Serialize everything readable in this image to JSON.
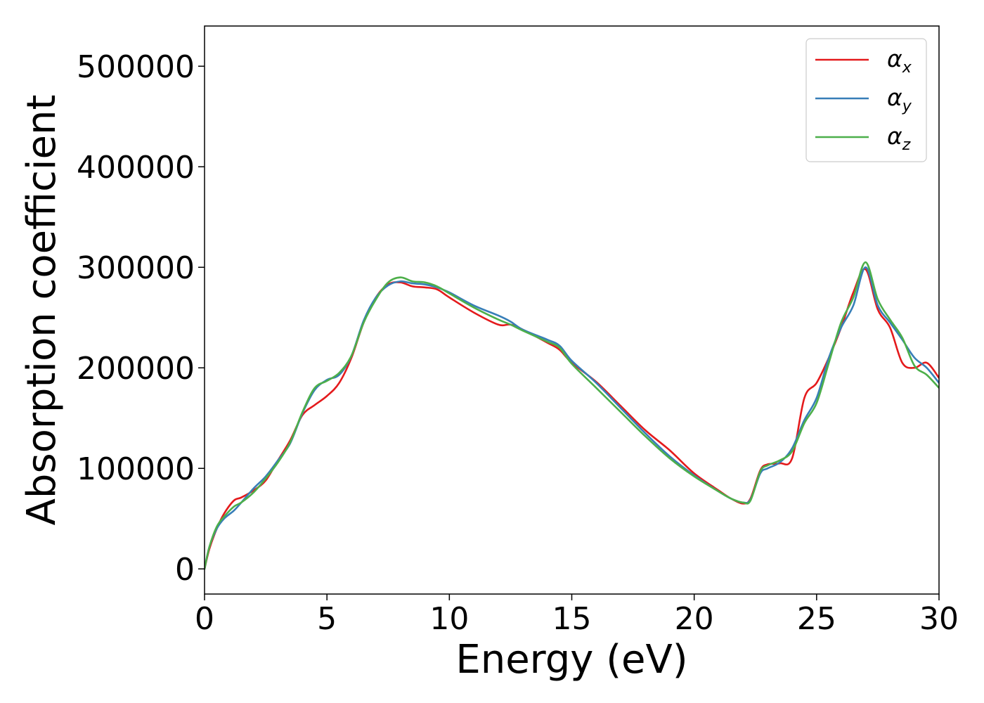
{
  "chart_data": {
    "type": "line",
    "title": "",
    "xlabel": "Energy (eV)",
    "ylabel": "Absorption coefficient",
    "xlim": [
      0,
      30
    ],
    "ylim": [
      -25000,
      540000
    ],
    "xticks": [
      0,
      5,
      10,
      15,
      20,
      25,
      30
    ],
    "yticks": [
      0,
      100000,
      200000,
      300000,
      400000,
      500000
    ],
    "grid": false,
    "legend_position": "top-right",
    "series": [
      {
        "name": "α",
        "subscript": "x",
        "color": "#e41a1c",
        "x": [
          0,
          0.2,
          0.5,
          0.8,
          1.2,
          1.5,
          2,
          2.5,
          3,
          3.5,
          4,
          4.5,
          5,
          5.5,
          6,
          6.5,
          7,
          7.5,
          8,
          8.5,
          9,
          9.5,
          10,
          11,
          12,
          12.5,
          13,
          14,
          14.5,
          15,
          16,
          17,
          18,
          19,
          20,
          21,
          21.5,
          22,
          22.3,
          22.7,
          23,
          23.5,
          24,
          24.5,
          25,
          25.5,
          26,
          26.5,
          27,
          27.5,
          28,
          28.5,
          29,
          29.5,
          30
        ],
        "y": [
          0,
          20000,
          40000,
          55000,
          68000,
          71000,
          78000,
          88000,
          108000,
          128000,
          153000,
          163000,
          172000,
          185000,
          210000,
          245000,
          270000,
          283000,
          285000,
          281000,
          280000,
          278000,
          270000,
          255000,
          243000,
          243000,
          238000,
          225000,
          218000,
          205000,
          186000,
          162000,
          138000,
          118000,
          95000,
          78000,
          70000,
          65000,
          70000,
          98000,
          104000,
          105000,
          110000,
          170000,
          185000,
          210000,
          240000,
          275000,
          298000,
          258000,
          240000,
          205000,
          200000,
          205000,
          190000
        ]
      },
      {
        "name": "α",
        "subscript": "y",
        "color": "#377eb8",
        "x": [
          0,
          0.2,
          0.5,
          0.8,
          1.2,
          1.5,
          2,
          2.5,
          3,
          3.5,
          4,
          4.5,
          5,
          5.5,
          6,
          6.5,
          7,
          7.5,
          8,
          8.5,
          9,
          9.5,
          10,
          11,
          12,
          12.5,
          13,
          14,
          14.5,
          15,
          16,
          17,
          18,
          19,
          20,
          21,
          21.5,
          22,
          22.3,
          22.7,
          23,
          23.5,
          24,
          24.5,
          25,
          25.5,
          26,
          26.5,
          27,
          27.5,
          28,
          28.5,
          29,
          29.5,
          30
        ],
        "y": [
          0,
          22000,
          40000,
          50000,
          58000,
          66000,
          80000,
          92000,
          108000,
          125000,
          155000,
          178000,
          188000,
          193000,
          212000,
          247000,
          270000,
          282000,
          286000,
          284000,
          283000,
          280000,
          275000,
          262000,
          252000,
          246000,
          238000,
          228000,
          222000,
          207000,
          185000,
          160000,
          135000,
          112000,
          93000,
          77000,
          70000,
          66000,
          69000,
          95000,
          100000,
          106000,
          120000,
          148000,
          170000,
          210000,
          240000,
          262000,
          300000,
          262000,
          245000,
          228000,
          210000,
          200000,
          185000
        ]
      },
      {
        "name": "α",
        "subscript": "z",
        "color": "#4daf4a",
        "x": [
          0,
          0.2,
          0.5,
          0.8,
          1.2,
          1.5,
          2,
          2.5,
          3,
          3.5,
          4,
          4.5,
          5,
          5.5,
          6,
          6.5,
          7,
          7.5,
          8,
          8.5,
          9,
          9.5,
          10,
          11,
          12,
          12.5,
          13,
          14,
          14.5,
          15,
          16,
          17,
          18,
          19,
          20,
          21,
          21.5,
          22,
          22.3,
          22.7,
          23,
          23.5,
          24,
          24.5,
          25,
          25.5,
          26,
          26.5,
          27,
          27.5,
          28,
          28.5,
          29,
          29.5,
          30
        ],
        "y": [
          0,
          22000,
          42000,
          52000,
          62000,
          66000,
          76000,
          90000,
          106000,
          126000,
          156000,
          180000,
          187000,
          195000,
          212000,
          245000,
          268000,
          285000,
          290000,
          286000,
          285000,
          281000,
          274000,
          260000,
          248000,
          243000,
          237000,
          226000,
          220000,
          204000,
          180000,
          156000,
          132000,
          110000,
          92000,
          77000,
          70000,
          66000,
          68000,
          97000,
          103000,
          108000,
          117000,
          145000,
          165000,
          205000,
          245000,
          270000,
          305000,
          268000,
          248000,
          230000,
          202000,
          193000,
          180000
        ]
      }
    ]
  }
}
